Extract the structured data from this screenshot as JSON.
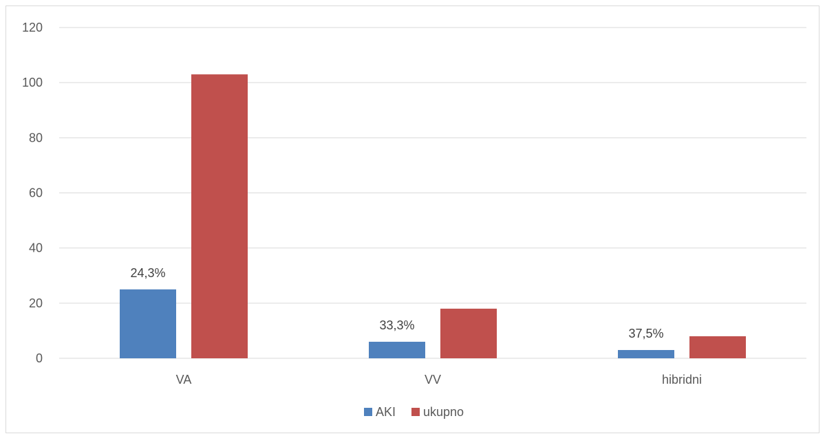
{
  "chart_data": {
    "type": "bar",
    "title": "",
    "xlabel": "",
    "ylabel": "",
    "categories": [
      "VA",
      "VV",
      "hibridni"
    ],
    "series": [
      {
        "name": "AKI",
        "values": [
          25,
          6,
          3
        ],
        "color": "#4f81bd",
        "data_labels": [
          "24,3%",
          "33,3%",
          "37,5%"
        ]
      },
      {
        "name": "ukupno",
        "values": [
          103,
          18,
          8
        ],
        "color": "#c0504d"
      }
    ],
    "ylim": [
      0,
      120
    ],
    "yticks": [
      0,
      20,
      40,
      60,
      80,
      100,
      120
    ],
    "grid": true,
    "legend_position": "bottom"
  }
}
